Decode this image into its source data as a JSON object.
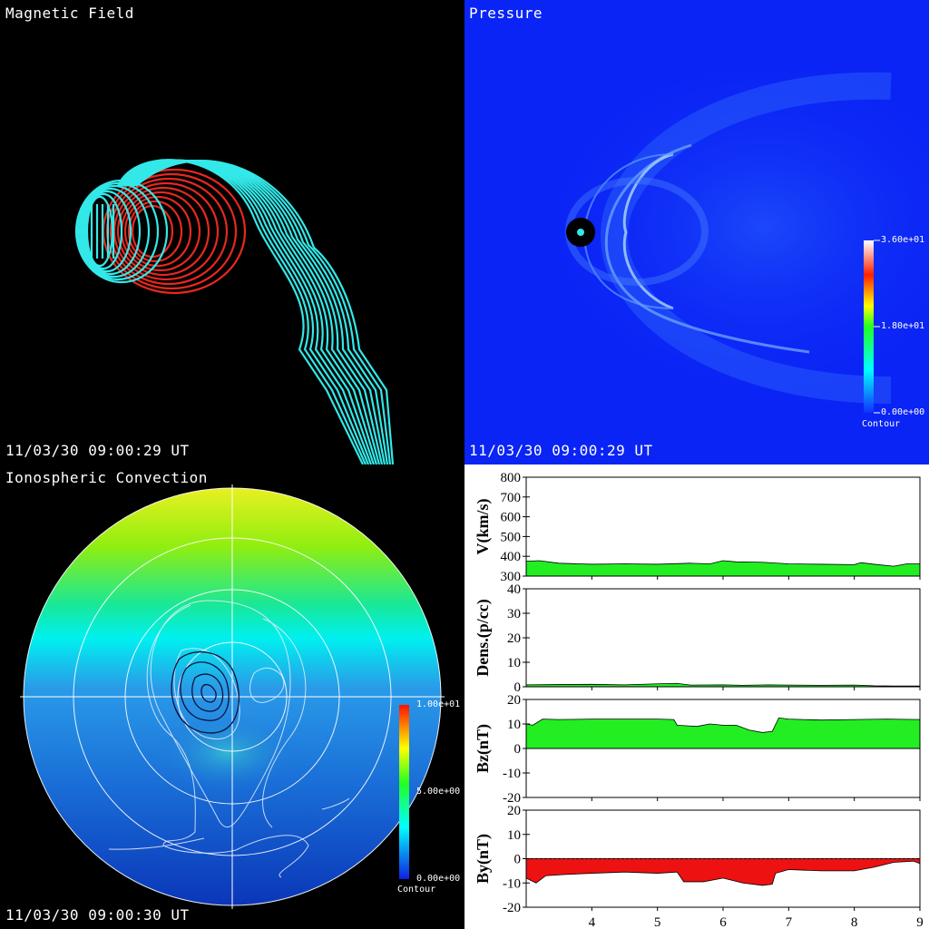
{
  "panels": {
    "magnetic": {
      "title": "Magnetic Field",
      "timestamp": "11/03/30 09:00:29 UT"
    },
    "pressure": {
      "title": "Pressure",
      "timestamp": "11/03/30 09:00:29 UT",
      "colorbar": {
        "max_label": "3.60e+01",
        "mid_label": "1.80e+01",
        "min_label": "0.00e+00",
        "caption": "Contour"
      }
    },
    "ionosphere": {
      "title": "Ionospheric Convection",
      "timestamp": "11/03/30 09:00:30 UT",
      "colorbar": {
        "max_label": "1.00e+01",
        "mid_label": "5.00e+00",
        "min_label": "0.00e+00",
        "caption": "Contour"
      }
    }
  },
  "colors": {
    "field_open": "#33e8e8",
    "field_closed": "#e8281e",
    "area_fill_pos": "#22ee22",
    "area_fill_neg": "#ee1111"
  },
  "chart_data": {
    "type": "area",
    "x_ticks": [
      "4",
      "5",
      "6",
      "7",
      "8",
      "9"
    ],
    "xlim": [
      3,
      9
    ],
    "series": [
      {
        "name": "V(km/s)",
        "ylim": [
          300,
          800
        ],
        "y_ticks": [
          "800",
          "700",
          "600",
          "500",
          "400",
          "300"
        ],
        "baseline": 300,
        "fill": "#22ee22",
        "x": [
          3,
          3.2,
          3.5,
          4,
          4.5,
          5,
          5.5,
          5.8,
          6,
          6.2,
          6.6,
          7,
          7.5,
          8,
          8.1,
          8.3,
          8.6,
          8.8,
          9
        ],
        "values": [
          375,
          378,
          365,
          360,
          362,
          360,
          365,
          362,
          378,
          372,
          370,
          362,
          360,
          358,
          368,
          360,
          350,
          362,
          362
        ]
      },
      {
        "name": "Dens.(p/cc)",
        "ylim": [
          0,
          40
        ],
        "y_ticks": [
          "40",
          "30",
          "20",
          "10",
          "0"
        ],
        "baseline": 0,
        "fill": "#22ee22",
        "x": [
          3,
          3.5,
          4,
          4.5,
          5,
          5.3,
          5.5,
          6,
          6.3,
          6.7,
          7,
          7.5,
          8,
          8.3,
          8.6,
          9
        ],
        "values": [
          0.8,
          0.9,
          1.0,
          0.8,
          1.2,
          1.4,
          0.7,
          0.8,
          0.6,
          0.8,
          0.7,
          0.6,
          0.7,
          0.4,
          0.3,
          0.3
        ]
      },
      {
        "name": "Bz(nT)",
        "ylim": [
          -20,
          20
        ],
        "y_ticks": [
          "20",
          "10",
          "0",
          "-10",
          "-20"
        ],
        "baseline": 0,
        "fill": "#22ee22",
        "x": [
          3,
          3.1,
          3.25,
          3.5,
          4,
          4.5,
          5,
          5.25,
          5.3,
          5.6,
          5.8,
          6,
          6.2,
          6.4,
          6.6,
          6.75,
          6.85,
          7,
          7.5,
          8,
          8.5,
          9
        ],
        "values": [
          10,
          9.5,
          12,
          11.8,
          12,
          12,
          12,
          11.8,
          9.5,
          9,
          10,
          9.5,
          9.5,
          7.5,
          6.5,
          7,
          12.5,
          12,
          11.6,
          11.8,
          12,
          11.8
        ]
      },
      {
        "name": "By(nT)",
        "ylim": [
          -20,
          20
        ],
        "y_ticks": [
          "20",
          "10",
          "0",
          "-10",
          "-20"
        ],
        "baseline": 0,
        "fill": "#ee1111",
        "x": [
          3,
          3.15,
          3.3,
          3.6,
          4,
          4.5,
          5,
          5.3,
          5.4,
          5.7,
          6,
          6.3,
          6.6,
          6.75,
          6.8,
          7,
          7.5,
          8,
          8.3,
          8.6,
          8.9,
          9
        ],
        "values": [
          -8,
          -10,
          -7,
          -6.5,
          -6,
          -5.5,
          -6,
          -5.5,
          -9.5,
          -9.5,
          -8,
          -10,
          -11,
          -10.5,
          -6,
          -4.5,
          -5,
          -5,
          -3.5,
          -1.5,
          -1,
          -2
        ]
      }
    ]
  }
}
